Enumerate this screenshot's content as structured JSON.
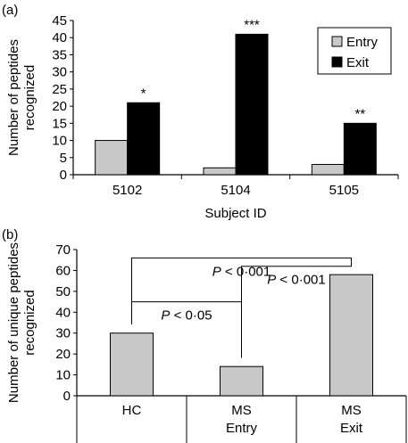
{
  "colors": {
    "entry": "#c8c8c8",
    "exit": "#000000",
    "unique": "#c8c8c8"
  },
  "chart_data": [
    {
      "panel_label": "(a)",
      "type": "bar",
      "categories": [
        "5102",
        "5104",
        "5105"
      ],
      "series": [
        {
          "name": "Entry",
          "values": [
            10,
            2,
            3
          ]
        },
        {
          "name": "Exit",
          "values": [
            21,
            41,
            15
          ]
        }
      ],
      "significance": [
        "*",
        "***",
        "**"
      ],
      "xlabel": "Subject ID",
      "ylabel": [
        "Number of peptides",
        "recognized"
      ],
      "ylim": [
        0,
        45
      ],
      "yticks": [
        0,
        5,
        10,
        15,
        20,
        25,
        30,
        35,
        40,
        45
      ],
      "grid": false,
      "legend": "top-right"
    },
    {
      "panel_label": "(b)",
      "type": "bar",
      "categories": [
        [
          "HC"
        ],
        [
          "MS",
          "Entry"
        ],
        [
          "MS",
          "Exit"
        ]
      ],
      "values": [
        30,
        14,
        58
      ],
      "xlabel": "",
      "ylabel": [
        "Number of unique peptides",
        "recognized"
      ],
      "ylim": [
        0,
        70
      ],
      "yticks": [
        0,
        10,
        20,
        30,
        40,
        50,
        60,
        70
      ],
      "grid": false,
      "comparisons": [
        {
          "from": 0,
          "to": 2,
          "p_symbol": "P",
          "p_text": " < 0·001"
        },
        {
          "from": 0,
          "to": 1,
          "p_symbol": "P",
          "p_text": " < 0·05"
        },
        {
          "from": 1,
          "to": 2,
          "p_symbol": "P",
          "p_text": " < 0·001"
        }
      ]
    }
  ]
}
